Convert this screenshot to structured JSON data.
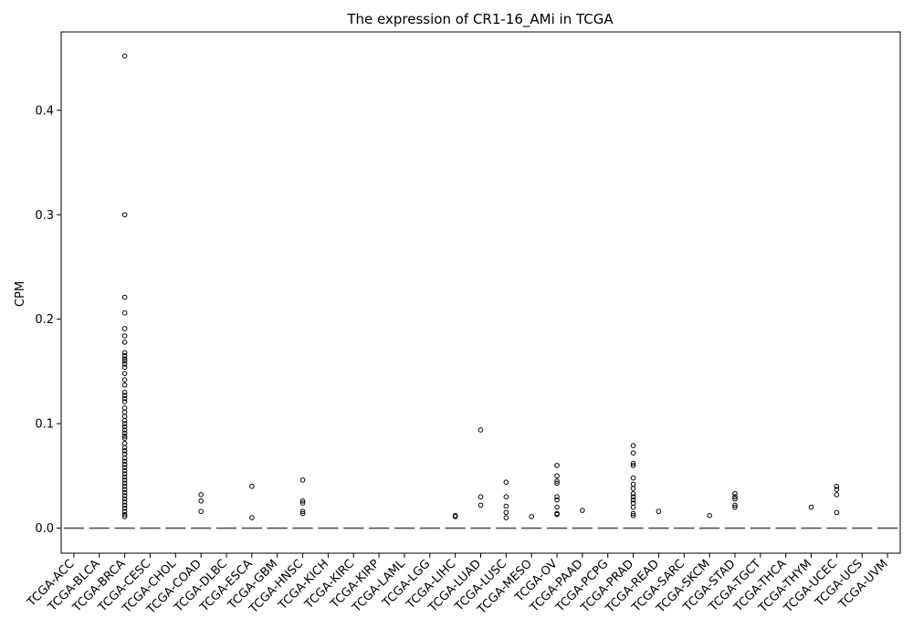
{
  "chart_data": {
    "type": "box",
    "title": "The expression of CR1-16_AMi in TCGA",
    "xlabel": "",
    "ylabel": "CPM",
    "ylim": [
      -0.024,
      0.475
    ],
    "yticks": [
      "0.0",
      "0.1",
      "0.2",
      "0.3",
      "0.4"
    ],
    "grid": false,
    "legend": "none",
    "colors": {
      "box": "#555555",
      "median": "#555555",
      "outlier": "#000000",
      "frame": "#000000"
    },
    "categories": [
      "TCGA-ACC",
      "TCGA-BLCA",
      "TCGA-BRCA",
      "TCGA-CESC",
      "TCGA-CHOL",
      "TCGA-COAD",
      "TCGA-DLBC",
      "TCGA-ESCA",
      "TCGA-GBM",
      "TCGA-HNSC",
      "TCGA-KICH",
      "TCGA-KIRC",
      "TCGA-KIRP",
      "TCGA-LAML",
      "TCGA-LGG",
      "TCGA-LIHC",
      "TCGA-LUAD",
      "TCGA-LUSC",
      "TCGA-MESO",
      "TCGA-OV",
      "TCGA-PAAD",
      "TCGA-PCPG",
      "TCGA-PRAD",
      "TCGA-READ",
      "TCGA-SARC",
      "TCGA-SKCM",
      "TCGA-STAD",
      "TCGA-TGCT",
      "TCGA-THCA",
      "TCGA-THYM",
      "TCGA-UCEC",
      "TCGA-UCS",
      "TCGA-UVM"
    ],
    "median": [
      0,
      0,
      0,
      0,
      0,
      0,
      0,
      0,
      0,
      0,
      0,
      0,
      0,
      0,
      0,
      0,
      0,
      0,
      0,
      0,
      0,
      0,
      0,
      0,
      0,
      0,
      0,
      0,
      0,
      0,
      0,
      0,
      0
    ],
    "outliers": [
      [],
      [],
      [
        0.452,
        0.3,
        0.221,
        0.206,
        0.191,
        0.184,
        0.178,
        0.168,
        0.165,
        0.162,
        0.16,
        0.157,
        0.154,
        0.148,
        0.142,
        0.137,
        0.13,
        0.127,
        0.124,
        0.121,
        0.115,
        0.111,
        0.107,
        0.103,
        0.1,
        0.097,
        0.094,
        0.091,
        0.088,
        0.086,
        0.081,
        0.077,
        0.074,
        0.071,
        0.067,
        0.064,
        0.061,
        0.058,
        0.055,
        0.052,
        0.049,
        0.046,
        0.043,
        0.04,
        0.037,
        0.034,
        0.031,
        0.028,
        0.025,
        0.022,
        0.019,
        0.016,
        0.013,
        0.011
      ],
      [],
      [],
      [
        0.032,
        0.026,
        0.016
      ],
      [],
      [
        0.04,
        0.01
      ],
      [],
      [
        0.046,
        0.026,
        0.024,
        0.016,
        0.014
      ],
      [],
      [],
      [],
      [],
      [],
      [
        0.012,
        0.011
      ],
      [
        0.094,
        0.03,
        0.022
      ],
      [
        0.044,
        0.03,
        0.021,
        0.015,
        0.01
      ],
      [
        0.011
      ],
      [
        0.06,
        0.05,
        0.045,
        0.043,
        0.03,
        0.027,
        0.02,
        0.014,
        0.013
      ],
      [
        0.017
      ],
      [],
      [
        0.079,
        0.072,
        0.062,
        0.06,
        0.048,
        0.042,
        0.038,
        0.033,
        0.03,
        0.027,
        0.024,
        0.02,
        0.014,
        0.012
      ],
      [
        0.016
      ],
      [],
      [
        0.012
      ],
      [
        0.033,
        0.03,
        0.028,
        0.022,
        0.02
      ],
      [],
      [],
      [
        0.02
      ],
      [
        0.04,
        0.037,
        0.032,
        0.015
      ],
      [],
      []
    ]
  }
}
